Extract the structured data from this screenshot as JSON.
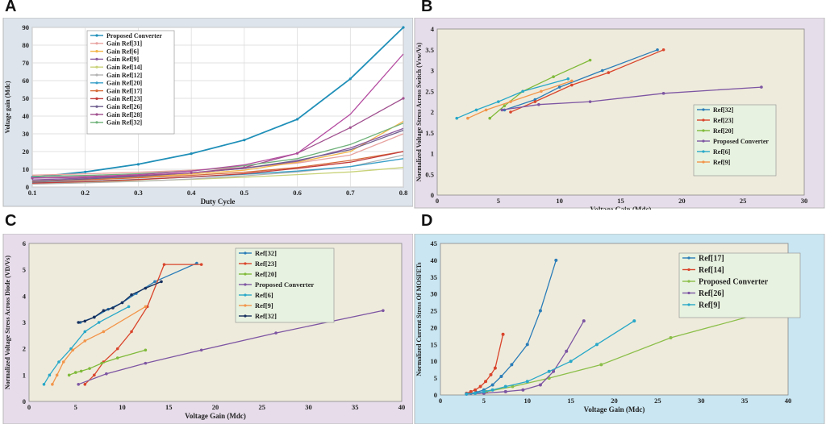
{
  "panels": {
    "A": "A",
    "B": "B",
    "C": "C",
    "D": "D"
  },
  "colors": {
    "panel_a_bg": "#dde4ec",
    "panel_b_bg": "#e6ddea",
    "panel_c_bg": "#e6dcea",
    "panel_d_bg": "#c9e6f2",
    "plot_bg_bcd": "#efebdc",
    "legend_bg_bcd": "#e8f2e0"
  },
  "chart_data": [
    {
      "id": "A",
      "type": "line",
      "title": "",
      "xlabel": "Duty Cycle",
      "ylabel": "Voltage gain (Mdc)",
      "xlim": [
        0.1,
        0.8
      ],
      "ylim": [
        0,
        90
      ],
      "xticks": [
        0.1,
        0.2,
        0.3,
        0.4,
        0.5,
        0.6,
        0.7,
        0.8
      ],
      "yticks": [
        0,
        10,
        20,
        30,
        40,
        50,
        60,
        70,
        80,
        90
      ],
      "xtick_labels": [
        "0.1",
        "0.2",
        "0.3",
        "0.4",
        "0.5",
        "0.6",
        "0.7",
        "0.8"
      ],
      "ytick_labels": [
        "0",
        "10",
        "20",
        "30",
        "40",
        "50",
        "60",
        "70",
        "80",
        "90"
      ],
      "grid": true,
      "legend": "top-left",
      "x": [
        0.1,
        0.2,
        0.3,
        0.4,
        0.5,
        0.6,
        0.7,
        0.8
      ],
      "series": [
        {
          "name": "Proposed Converter",
          "color": "#1f8fb8",
          "markers": true,
          "values": [
            5.5,
            8.5,
            12.8,
            18.8,
            26.5,
            38.2,
            61,
            90
          ]
        },
        {
          "name": "Gain Ref[31]",
          "color": "#e8a3a0",
          "markers": false,
          "values": [
            6.7,
            7.4,
            8.3,
            9.5,
            11,
            13.5,
            18,
            30
          ]
        },
        {
          "name": "Gain Ref[6]",
          "color": "#f2b64a",
          "markers": false,
          "values": [
            3.3,
            4.4,
            5.6,
            7.3,
            9.5,
            14,
            20,
            37
          ]
        },
        {
          "name": "Gain Ref[9]",
          "color": "#8b5a9e",
          "markers": false,
          "values": [
            4,
            5,
            6.3,
            8,
            10.5,
            14.5,
            22,
            33
          ]
        },
        {
          "name": "Gain Ref[14]",
          "color": "#c8d278",
          "markers": false,
          "values": [
            2.2,
            2.7,
            3.4,
            4.3,
            5.5,
            7,
            8.5,
            11
          ]
        },
        {
          "name": "Gain Ref[12]",
          "color": "#b3b3b3",
          "markers": false,
          "values": [
            1.6,
            2.3,
            3.2,
            4.5,
            6.3,
            8.5,
            11.5,
            18
          ]
        },
        {
          "name": "Gain Ref[20]",
          "color": "#3aa0c8",
          "markers": false,
          "values": [
            2.5,
            3.2,
            4.3,
            5.6,
            7.2,
            9,
            11.5,
            16
          ]
        },
        {
          "name": "Gain Ref[17]",
          "color": "#d56a3a",
          "markers": false,
          "values": [
            3,
            4,
            5.2,
            6.6,
            8.3,
            11,
            15,
            20
          ]
        },
        {
          "name": "Gain Ref[23]",
          "color": "#c23b3b",
          "markers": false,
          "values": [
            2.2,
            3,
            4.2,
            5.7,
            7.5,
            10.5,
            14,
            20
          ]
        },
        {
          "name": "Gain Ref[26]",
          "color": "#6f5f8f",
          "markers": false,
          "values": [
            3.2,
            4.5,
            6,
            8,
            10.5,
            15,
            21,
            32
          ]
        },
        {
          "name": "Gain Ref[28]",
          "color": "#a0508f",
          "markers": true,
          "values": [
            5,
            5.5,
            6.5,
            8,
            11,
            19,
            33.5,
            50
          ]
        },
        {
          "name": "Gain Ref[32]",
          "color": "#6fb27a",
          "markers": false,
          "values": [
            6,
            6.5,
            7.5,
            9,
            12,
            16,
            24,
            36
          ]
        },
        {
          "name": "",
          "color": "#b44ba0",
          "markers": false,
          "values": [
            5.2,
            5.8,
            7,
            9,
            12.5,
            19,
            41,
            75
          ]
        }
      ]
    },
    {
      "id": "B",
      "type": "line",
      "title": "",
      "xlabel": "Voltage Gain (Mdc)",
      "ylabel": "Normalized Voltage Stress Across Switch (Vsw/Vs)",
      "xlim": [
        0,
        30
      ],
      "ylim": [
        0,
        4
      ],
      "xticks": [
        0,
        5,
        10,
        15,
        20,
        25,
        30
      ],
      "yticks": [
        0,
        0.5,
        1,
        1.5,
        2,
        2.5,
        3,
        3.5,
        4
      ],
      "xtick_labels": [
        "0",
        "5",
        "10",
        "15",
        "20",
        "25",
        "30"
      ],
      "ytick_labels": [
        "0",
        "0.5",
        "1",
        "1.5",
        "2",
        "2.5",
        "3",
        "3.5",
        "4"
      ],
      "grid": false,
      "legend": "right",
      "series": [
        {
          "name": "Ref[32]",
          "color": "#2a7db8",
          "x": [
            5.5,
            8,
            10,
            13.5,
            18
          ],
          "y": [
            2.05,
            2.3,
            2.6,
            3,
            3.5
          ]
        },
        {
          "name": "Ref[23]",
          "color": "#d9452c",
          "x": [
            6,
            8,
            11,
            14,
            18.5
          ],
          "y": [
            2,
            2.25,
            2.65,
            2.95,
            3.5
          ]
        },
        {
          "name": "Ref[20]",
          "color": "#7fba3a",
          "x": [
            4.3,
            5.5,
            7,
            9.5,
            12.5
          ],
          "y": [
            1.85,
            2.15,
            2.5,
            2.85,
            3.25
          ]
        },
        {
          "name": "Proposed Converter",
          "color": "#7d56a3",
          "x": [
            5.3,
            8.3,
            12.5,
            18.5,
            26.5
          ],
          "y": [
            2.05,
            2.18,
            2.25,
            2.45,
            2.6
          ]
        },
        {
          "name": "Ref[6]",
          "color": "#28a8c8",
          "x": [
            1.6,
            3.2,
            5,
            7,
            10.7
          ],
          "y": [
            1.85,
            2.05,
            2.25,
            2.5,
            2.8
          ]
        },
        {
          "name": "Ref[9]",
          "color": "#f2954a",
          "x": [
            2.5,
            4,
            6,
            8.5,
            11
          ],
          "y": [
            1.85,
            2.05,
            2.25,
            2.5,
            2.75
          ]
        }
      ]
    },
    {
      "id": "C",
      "type": "line",
      "title": "",
      "xlabel": "Voltage Gain (Mdc)",
      "ylabel": "Normalized Voltage Stress Across Diode (VD/Vs)",
      "xlim": [
        0,
        40
      ],
      "ylim": [
        0,
        6
      ],
      "xticks": [
        0,
        5,
        10,
        15,
        20,
        25,
        30,
        35,
        40
      ],
      "yticks": [
        0,
        1,
        2,
        3,
        4,
        5,
        6
      ],
      "xtick_labels": [
        "0",
        "5",
        "10",
        "15",
        "20",
        "25",
        "30",
        "35",
        "40"
      ],
      "ytick_labels": [
        "0",
        "1",
        "2",
        "3",
        "4",
        "5",
        "6"
      ],
      "grid": false,
      "legend": "top-right",
      "series": [
        {
          "name": "Ref[32]",
          "color": "#2a7db8",
          "x": [
            5.5,
            7,
            8.5,
            10,
            11.5,
            13.5,
            18
          ],
          "y": [
            3,
            3.2,
            3.5,
            3.75,
            4.1,
            4.55,
            5.25
          ]
        },
        {
          "name": "Ref[23]",
          "color": "#d9452c",
          "x": [
            6,
            7,
            8,
            9.5,
            11,
            12.7,
            14.5,
            18.5
          ],
          "y": [
            0.65,
            1,
            1.5,
            2,
            2.65,
            3.6,
            5.2,
            5.2
          ]
        },
        {
          "name": "Ref[20]",
          "color": "#7fba3a",
          "x": [
            4.3,
            5,
            5.6,
            6.5,
            7.8,
            9.5,
            12.5
          ],
          "y": [
            1,
            1.1,
            1.15,
            1.25,
            1.45,
            1.65,
            1.95
          ]
        },
        {
          "name": "Proposed Converter",
          "color": "#7d56a3",
          "x": [
            5.3,
            8.3,
            12.5,
            18.5,
            26.5,
            38
          ],
          "y": [
            0.65,
            1.05,
            1.45,
            1.95,
            2.6,
            3.45
          ]
        },
        {
          "name": "Ref[6]",
          "color": "#28a8c8",
          "x": [
            1.6,
            2.2,
            3.2,
            4.5,
            6,
            7.5,
            10.7
          ],
          "y": [
            0.65,
            1,
            1.5,
            2,
            2.65,
            3,
            3.6
          ]
        },
        {
          "name": "Ref[9]",
          "color": "#f2954a",
          "x": [
            2.5,
            3,
            3.7,
            4.7,
            6,
            8,
            12.5
          ],
          "y": [
            0.65,
            1,
            1.5,
            1.95,
            2.3,
            2.65,
            3.6
          ]
        },
        {
          "name": "Ref[32]",
          "color": "#16305e",
          "x": [
            5.3,
            6,
            7,
            8,
            9,
            10,
            11,
            12.5,
            14.2
          ],
          "y": [
            3,
            3.05,
            3.2,
            3.45,
            3.55,
            3.75,
            4.05,
            4.3,
            4.55
          ]
        }
      ]
    },
    {
      "id": "D",
      "type": "line",
      "title": "",
      "xlabel": "Voltage Gain (Mdc)",
      "ylabel": "Normalized Current Stress Of MOSFETs",
      "xlim": [
        0,
        40
      ],
      "ylim": [
        0,
        45
      ],
      "xticks": [
        0,
        5,
        10,
        15,
        20,
        25,
        30,
        35,
        40
      ],
      "yticks": [
        0,
        5,
        10,
        15,
        20,
        25,
        30,
        35,
        40,
        45
      ],
      "xtick_labels": [
        "0",
        "5",
        "10",
        "15",
        "20",
        "25",
        "30",
        "35",
        "40"
      ],
      "ytick_labels": [
        "0",
        "5",
        "10",
        "15",
        "20",
        "25",
        "30",
        "35",
        "40",
        "45"
      ],
      "grid": false,
      "legend": "top-center",
      "series": [
        {
          "name": "Ref[17]",
          "color": "#2a7db8",
          "x": [
            3,
            3.5,
            4.1,
            5,
            6,
            7,
            8.2,
            10,
            11.5,
            13.3
          ],
          "y": [
            0.3,
            0.5,
            0.8,
            1.5,
            3,
            5.5,
            9,
            15,
            25,
            40
          ]
        },
        {
          "name": "Ref[14]",
          "color": "#d9452c",
          "x": [
            3,
            3.5,
            4,
            4.6,
            5.2,
            5.8,
            6.3,
            7.2
          ],
          "y": [
            0.5,
            1,
            1.5,
            2.5,
            4,
            6,
            8,
            18
          ]
        },
        {
          "name": "Proposed Converter",
          "color": "#8bbf4a",
          "x": [
            5.3,
            8.3,
            12.5,
            18.5,
            26.5,
            38
          ],
          "y": [
            1,
            2.5,
            5,
            9,
            17,
            25
          ]
        },
        {
          "name": "Ref[26]",
          "color": "#7d56a3",
          "x": [
            3,
            5,
            7.5,
            9.5,
            11.5,
            13,
            14.5,
            16.5
          ],
          "y": [
            0.3,
            0.5,
            1,
            1.5,
            3,
            7,
            13,
            22
          ]
        },
        {
          "name": "Ref[9]",
          "color": "#28a8c8",
          "x": [
            3,
            4,
            5,
            6,
            7.5,
            10,
            12.5,
            15,
            18,
            22.3
          ],
          "y": [
            0.3,
            0.5,
            1,
            1.5,
            2.5,
            4,
            7,
            10,
            15,
            22
          ]
        }
      ]
    }
  ]
}
